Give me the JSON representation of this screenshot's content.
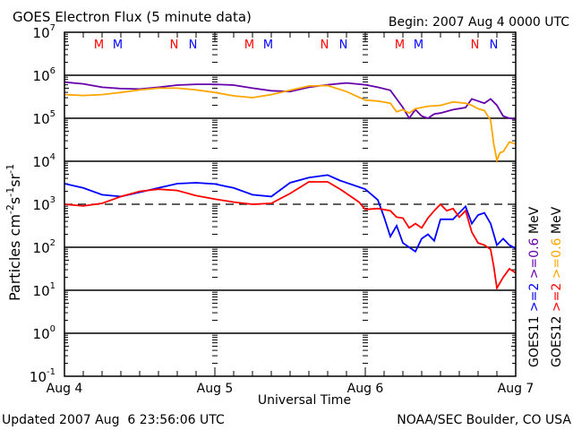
{
  "chart_data": {
    "type": "line",
    "title": "GOES Electron Flux (5 minute data)",
    "begin_label": "Begin: 2007 Aug 4 0000 UTC",
    "xlabel": "Universal Time",
    "ylabel_main": "Particles cm",
    "ylabel_sup1": "-2",
    "ylabel_s": "s",
    "ylabel_sup2": "-1",
    "ylabel_sr": "sr",
    "ylabel_sup3": "-1",
    "x_unit": "hours since 2007 Aug 4 0000 UTC",
    "xlim": [
      0,
      72
    ],
    "ylim_log10": [
      -1,
      7
    ],
    "y_scale": "log",
    "x_ticks": [
      {
        "value": 0,
        "label": "Aug 4"
      },
      {
        "value": 24,
        "label": "Aug 5"
      },
      {
        "value": 48,
        "label": "Aug 6"
      },
      {
        "value": 72,
        "label": "Aug 7"
      }
    ],
    "y_ticks": [
      {
        "exp": 7,
        "base": "10",
        "sup": "7"
      },
      {
        "exp": 6,
        "base": "10",
        "sup": "6"
      },
      {
        "exp": 5,
        "base": "10",
        "sup": "5"
      },
      {
        "exp": 4,
        "base": "10",
        "sup": "4"
      },
      {
        "exp": 3,
        "base": "10",
        "sup": "3"
      },
      {
        "exp": 2,
        "base": "10",
        "sup": "2"
      },
      {
        "exp": 1,
        "base": "10",
        "sup": "1"
      },
      {
        "exp": 0,
        "base": "10",
        "sup": "0"
      },
      {
        "exp": -1,
        "base": "10",
        "sup": "-1"
      }
    ],
    "grid_lines_log10": [
      6,
      5,
      4,
      2,
      1,
      0
    ],
    "dashed_threshold_log10": 3,
    "markers": [
      {
        "label": "M",
        "hour": 5.5,
        "color": "#ff0000"
      },
      {
        "label": "M",
        "hour": 8.5,
        "color": "#0000ff"
      },
      {
        "label": "N",
        "hour": 17.5,
        "color": "#ff0000"
      },
      {
        "label": "N",
        "hour": 20.5,
        "color": "#0000ff"
      },
      {
        "label": "M",
        "hour": 29.5,
        "color": "#ff0000"
      },
      {
        "label": "M",
        "hour": 32.5,
        "color": "#0000ff"
      },
      {
        "label": "N",
        "hour": 41.5,
        "color": "#ff0000"
      },
      {
        "label": "N",
        "hour": 44.5,
        "color": "#0000ff"
      },
      {
        "label": "M",
        "hour": 53.5,
        "color": "#ff0000"
      },
      {
        "label": "M",
        "hour": 56.5,
        "color": "#0000ff"
      },
      {
        "label": "N",
        "hour": 65.5,
        "color": "#ff0000"
      },
      {
        "label": "N",
        "hour": 68.5,
        "color": "#0000ff"
      }
    ],
    "series": [
      {
        "name": "GOES11 >=0.6 MeV",
        "color": "#6600aa",
        "x": [
          0,
          3,
          6,
          9,
          12,
          15,
          18,
          21,
          24,
          27,
          30,
          33,
          36,
          39,
          42,
          45,
          48,
          50,
          52,
          53,
          54,
          55,
          56,
          57,
          58,
          59,
          60,
          62,
          64,
          65,
          66,
          67,
          68,
          69,
          70,
          71,
          72
        ],
        "y": [
          5.84,
          5.8,
          5.72,
          5.69,
          5.68,
          5.72,
          5.77,
          5.79,
          5.79,
          5.77,
          5.7,
          5.64,
          5.62,
          5.72,
          5.78,
          5.82,
          5.78,
          5.72,
          5.65,
          5.45,
          5.25,
          5.0,
          5.2,
          5.05,
          5.0,
          5.1,
          5.12,
          5.2,
          5.25,
          5.45,
          5.4,
          5.35,
          5.45,
          5.3,
          5.05,
          5.0,
          4.98
        ]
      },
      {
        "name": "GOES12 >=0.6 MeV",
        "color": "#ffa500",
        "x": [
          0,
          3,
          6,
          9,
          12,
          15,
          18,
          21,
          24,
          27,
          30,
          33,
          36,
          39,
          42,
          45,
          48,
          50,
          52,
          53,
          54,
          55,
          56,
          58,
          60,
          62,
          64,
          65,
          66,
          67,
          68,
          68.5,
          69,
          69.5,
          70,
          71,
          72
        ],
        "y": [
          5.55,
          5.53,
          5.55,
          5.6,
          5.66,
          5.7,
          5.7,
          5.66,
          5.6,
          5.52,
          5.48,
          5.55,
          5.65,
          5.75,
          5.76,
          5.62,
          5.42,
          5.4,
          5.35,
          5.15,
          5.2,
          5.12,
          5.22,
          5.28,
          5.3,
          5.38,
          5.35,
          5.3,
          5.22,
          5.18,
          4.95,
          4.4,
          4.02,
          4.2,
          4.22,
          4.45,
          4.4
        ]
      },
      {
        "name": "GOES11 >=2 MeV",
        "color": "#0000ff",
        "x": [
          0,
          3,
          6,
          9,
          12,
          15,
          18,
          21,
          24,
          27,
          30,
          33,
          36,
          39,
          42,
          44,
          46,
          48,
          50,
          51,
          52,
          53,
          54,
          55,
          56,
          57,
          58,
          59,
          60,
          62,
          64,
          65,
          66,
          67,
          68,
          69,
          70,
          71,
          72
        ],
        "y": [
          3.48,
          3.38,
          3.22,
          3.18,
          3.28,
          3.38,
          3.48,
          3.5,
          3.47,
          3.38,
          3.22,
          3.18,
          3.5,
          3.62,
          3.68,
          3.55,
          3.45,
          3.35,
          3.1,
          2.7,
          2.25,
          2.5,
          2.1,
          2.0,
          1.9,
          2.2,
          2.3,
          2.15,
          2.65,
          2.65,
          2.95,
          2.55,
          2.75,
          2.8,
          2.55,
          2.05,
          2.2,
          2.05,
          1.97
        ]
      },
      {
        "name": "GOES12 >=2 MeV",
        "color": "#ff0000",
        "x": [
          0,
          3,
          6,
          9,
          12,
          15,
          18,
          21,
          24,
          27,
          30,
          33,
          36,
          39,
          42,
          44,
          46,
          47,
          48,
          50,
          52,
          53,
          54,
          55,
          56,
          57,
          58,
          59,
          60,
          61,
          62,
          63,
          64,
          65,
          66,
          67,
          68,
          68.5,
          69,
          70,
          71,
          72
        ],
        "y": [
          3.0,
          2.96,
          3.02,
          3.18,
          3.3,
          3.35,
          3.32,
          3.2,
          3.12,
          3.05,
          3.0,
          3.02,
          3.25,
          3.52,
          3.52,
          3.35,
          3.15,
          3.05,
          2.88,
          2.9,
          2.85,
          2.7,
          2.68,
          2.45,
          2.55,
          2.45,
          2.68,
          2.85,
          3.0,
          2.85,
          2.9,
          2.7,
          2.85,
          2.35,
          2.1,
          2.05,
          1.95,
          1.55,
          1.05,
          1.3,
          1.5,
          1.4
        ]
      }
    ],
    "legend": {
      "placement": "right-vertical",
      "columns": [
        {
          "sat": "GOES11",
          "items": [
            {
              "text": ">=2",
              "color": "#0000ff"
            },
            {
              "text": ">=0.6",
              "color": "#6600aa"
            }
          ],
          "unit": "MeV"
        },
        {
          "sat": "GOES12",
          "items": [
            {
              "text": ">=2",
              "color": "#ff0000"
            },
            {
              "text": ">=0.6",
              "color": "#ffa500"
            }
          ],
          "unit": "MeV"
        }
      ]
    }
  },
  "footer": {
    "updated": "Updated 2007 Aug  6 23:56:06 UTC",
    "credit": "NOAA/SEC Boulder, CO USA"
  }
}
